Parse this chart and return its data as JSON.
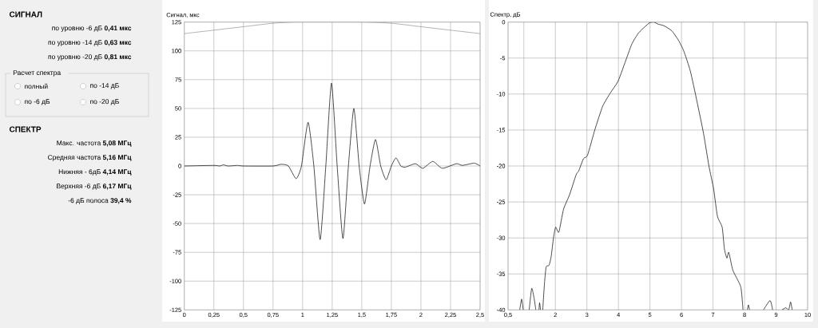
{
  "chart_data": [
    {
      "type": "other",
      "title": "СИГНАЛ",
      "annotations": [
        "по уровню -6 дБ **0,41 мкс**",
        "по уровню -14 дБ **0,63 мкс**",
        "по уровню -20 дБ **0,81 мкс**"
      ]
    },
    {
      "type": "other",
      "title": "Расчет спектра",
      "annotations": [
        "полный",
        "по -14 дБ",
        "по -6 дБ",
        "по -20 дБ"
      ]
    },
    {
      "type": "other",
      "title": "СПЕКТР",
      "annotations": [
        "Макс. частота **5,08 МГц**",
        "Средняя частота **5,16 МГц**",
        "Нижняя - 6дБ **4,14 МГц**",
        "Верхняя -6 дБ **6,17 МГц**",
        "-6 дБ полоса **39,4 %**"
      ]
    },
    {
      "type": "line",
      "ylabel": "Сигнал, мкс",
      "xlim": [
        0,
        2.5
      ],
      "ylim": [
        -125,
        125
      ],
      "xticks": [
        0,
        {
          "value": 0.25,
          "label": "0,25"
        },
        {
          "value": 0.5,
          "label": "0,5"
        },
        {
          "value": 0.75,
          "label": "0,75"
        },
        1,
        {
          "value": 1.25,
          "label": "1,25"
        },
        {
          "value": 1.5,
          "label": "1,5"
        },
        {
          "value": 1.75,
          "label": "1,75"
        },
        2,
        {
          "value": 2.25,
          "label": "2,25"
        },
        {
          "value": 2.5,
          "label": "2,5"
        }
      ],
      "yticks": [
        -125,
        -100,
        -75,
        -50,
        -25,
        0,
        25,
        50,
        75,
        100,
        125
      ],
      "grid": true,
      "series": [
        {
          "color": "#909090",
          "x": [
            0,
            0.25,
            0.5,
            0.75,
            0.95,
            1.5,
            1.75,
            2,
            2.25,
            2.5
          ],
          "values": [
            115,
            118,
            121,
            124,
            125,
            125,
            124,
            121,
            118,
            115
          ]
        },
        {
          "color": "#000000",
          "x": [
            0,
            0.25,
            0.3,
            0.33,
            0.37,
            0.45,
            0.5,
            0.75,
            0.82,
            0.88,
            0.945,
            0.99,
            1.046,
            1.095,
            1.148,
            1.196,
            1.244,
            1.292,
            1.341,
            1.387,
            1.433,
            1.478,
            1.523,
            1.57,
            1.616,
            1.66,
            1.706,
            1.75,
            1.789,
            1.83,
            1.868,
            1.953,
            2.016,
            2.1,
            2.18,
            2.3,
            2.35,
            2.45,
            2.5
          ],
          "values": [
            0,
            0.5,
            0,
            1,
            0,
            0.5,
            0,
            0,
            1.5,
            0,
            -11,
            0,
            38,
            0,
            -64,
            0,
            72,
            0,
            -63,
            0,
            50,
            0,
            -33,
            0,
            23,
            0,
            -12,
            0,
            7,
            0,
            -1,
            2,
            -2,
            4,
            -2,
            2,
            0.5,
            2.5,
            0
          ]
        }
      ]
    },
    {
      "type": "line",
      "ylabel": "Спектр, дБ",
      "xlim": [
        0.5,
        10
      ],
      "ylim": [
        -40,
        0
      ],
      "xticks": [
        {
          "value": 0.5,
          "label": "0,5"
        },
        {
          "value": 1,
          "label": null
        },
        2,
        3,
        4,
        5,
        6,
        7,
        8,
        9,
        10
      ],
      "yticks": [
        -40,
        -35,
        -30,
        -25,
        -20,
        -15,
        -10,
        -5,
        0
      ],
      "grid": true,
      "series": [
        {
          "color": "#000000",
          "x": [
            0.87,
            0.93,
            0.98,
            1.0,
            1.17,
            1.25,
            1.33,
            1.38,
            1.4,
            1.48,
            1.5,
            1.53,
            1.55,
            1.6,
            1.66,
            1.71,
            1.8,
            1.87,
            1.94,
            2.01,
            2.11,
            2.26,
            2.45,
            2.66,
            2.74,
            2.89,
            3.02,
            3.25,
            3.5,
            3.75,
            3.99,
            4.26,
            4.43,
            4.64,
            4.85,
            4.99,
            5.12,
            5.27,
            5.44,
            5.69,
            5.9,
            6.07,
            6.28,
            6.49,
            6.7,
            6.87,
            7.02,
            7.14,
            7.29,
            7.36,
            7.44,
            7.5,
            7.63,
            7.88,
            7.95,
            8.0,
            8.09,
            8.12,
            8.16,
            8.3,
            8.6,
            8.81,
            8.89,
            9.0,
            9.19,
            9.31,
            9.4,
            9.46,
            9.51
          ],
          "values": [
            -40,
            -38.5,
            -40,
            null,
            -40,
            -37,
            -38.5,
            -40,
            null,
            -40,
            -39,
            -40,
            null,
            -40,
            -36,
            -34,
            -33.8,
            -32.5,
            -30,
            -28.5,
            -29.2,
            -26,
            -24,
            -21.2,
            -20.7,
            -19,
            -18.5,
            -15,
            -11.7,
            -9.8,
            -8.2,
            -5,
            -3,
            -1.5,
            -0.6,
            -0.1,
            0,
            -0.3,
            -0.5,
            -1.2,
            -2.5,
            -4,
            -6.8,
            -11,
            -15.5,
            -20,
            -23.2,
            -27,
            -28.5,
            -31.5,
            -32.8,
            -32,
            -34.5,
            -36.8,
            -40,
            null,
            -40,
            -39.3,
            -40,
            null,
            -40,
            -38.7,
            -40,
            null,
            -40,
            -39.7,
            -40,
            -38.9,
            -40
          ]
        }
      ]
    }
  ]
}
